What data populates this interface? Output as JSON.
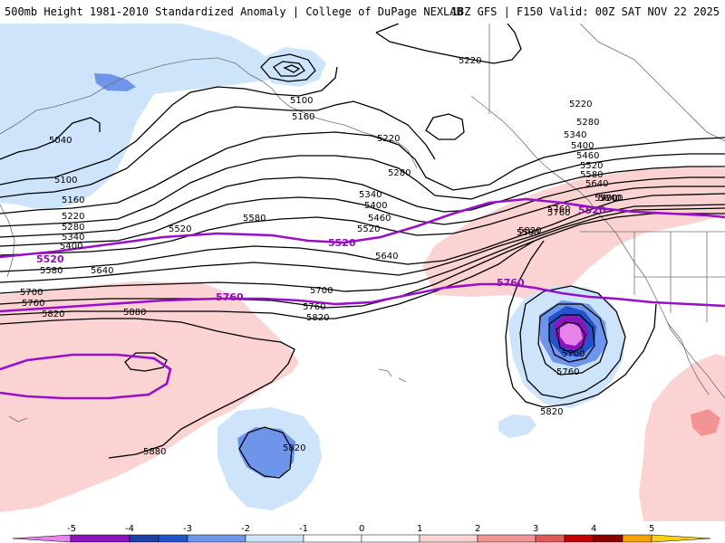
{
  "header": {
    "left_title": "500mb Height 1981-2010 Standardized Anomaly | College of DuPage NEXLAB",
    "right_title": "18Z GFS | F150 Valid: 00Z SAT NOV 22 2025"
  },
  "map": {
    "type": "geopotential-height-anomaly-map",
    "region": "North Pacific / western North America",
    "contour_labels": {
      "black": [
        "5220",
        "5100",
        "5160",
        "5040",
        "5100",
        "5160",
        "5220",
        "5280",
        "5340",
        "5400",
        "5580",
        "5640",
        "5700",
        "5760",
        "5820",
        "5880",
        "5520",
        "5580",
        "5640",
        "5700",
        "5760",
        "5820",
        "5220",
        "5280",
        "5340",
        "5400",
        "5460",
        "5520",
        "5580",
        "5640",
        "5700",
        "5760",
        "5820",
        "5700",
        "5760",
        "5820",
        "5820",
        "5880",
        "5220",
        "5280",
        "5340",
        "5400",
        "5460",
        "5520",
        "5580",
        "5640",
        "5700",
        "5760",
        "5340",
        "5400",
        "5460",
        "5520",
        "5640",
        "5700",
        "5760",
        "5820"
      ],
      "purple": [
        "5520",
        "5520",
        "5520",
        "5760",
        "5760",
        "5760"
      ]
    },
    "colors": {
      "contour": "#000000",
      "highlight_contour": "#9a10c8",
      "coastline": "#707070",
      "neg1": "#cde4fb",
      "neg2": "#6f95ea",
      "neg3": "#2153c9",
      "neg4": "#8e13c0",
      "neg5": "#e883ec",
      "pos1": "#fbd3d3",
      "pos2": "#f39494",
      "pos3": "#e05a5a"
    }
  },
  "legend": {
    "ticks": [
      "-5",
      "-4",
      "-3",
      "-2",
      "-1",
      "0",
      "1",
      "2",
      "3",
      "4",
      "5"
    ],
    "colors": [
      "#e883ec",
      "#8e13c0",
      "#1e3fa8",
      "#2153c9",
      "#6f95ea",
      "#cde4fb",
      "#ffffff",
      "#ffffff",
      "#fbd3d3",
      "#f39494",
      "#e05a5a",
      "#c40000",
      "#8b0000",
      "#f7a100",
      "#fdd017"
    ]
  }
}
